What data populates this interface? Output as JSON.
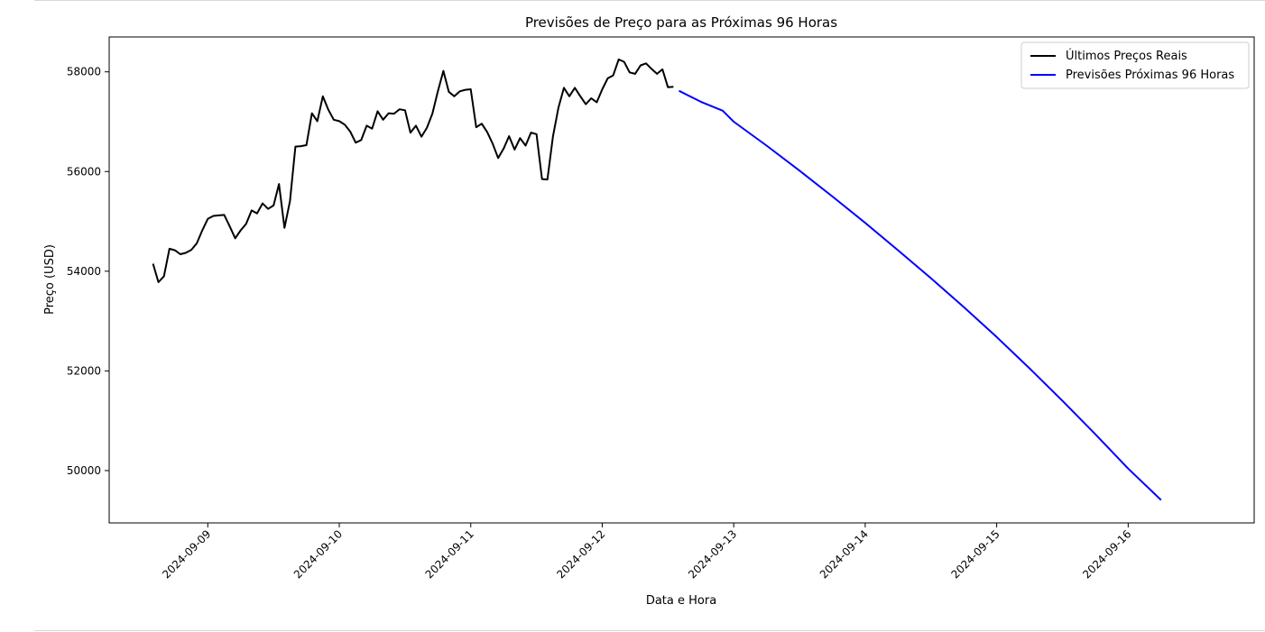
{
  "chart_data": {
    "type": "line",
    "title": "Previsões de Preço para as Próximas 96 Horas",
    "xlabel": "Data e Hora",
    "ylabel": "Preço (USD)",
    "ylim": [
      48950,
      58700
    ],
    "xlim": [
      "2024-09-08 06:00",
      "2024-09-16 23:00"
    ],
    "x_ticks": [
      "2024-09-09",
      "2024-09-10",
      "2024-09-11",
      "2024-09-12",
      "2024-09-13",
      "2024-09-14",
      "2024-09-15",
      "2024-09-16"
    ],
    "y_ticks": [
      50000,
      52000,
      54000,
      56000,
      58000
    ],
    "grid": false,
    "legend_position": "top-right",
    "series": [
      {
        "name": "Últimos Preços Reais",
        "color": "#000000",
        "points": [
          [
            "2024-09-08 14:00",
            54150
          ],
          [
            "2024-09-08 15:00",
            53780
          ],
          [
            "2024-09-08 16:00",
            53900
          ],
          [
            "2024-09-08 17:00",
            54450
          ],
          [
            "2024-09-08 18:00",
            54420
          ],
          [
            "2024-09-08 19:00",
            54340
          ],
          [
            "2024-09-08 20:00",
            54370
          ],
          [
            "2024-09-08 21:00",
            54430
          ],
          [
            "2024-09-08 22:00",
            54560
          ],
          [
            "2024-09-08 23:00",
            54820
          ],
          [
            "2024-09-09 00:00",
            55050
          ],
          [
            "2024-09-09 01:00",
            55110
          ],
          [
            "2024-09-09 02:00",
            55120
          ],
          [
            "2024-09-09 03:00",
            55130
          ],
          [
            "2024-09-09 04:00",
            54900
          ],
          [
            "2024-09-09 05:00",
            54660
          ],
          [
            "2024-09-09 06:00",
            54820
          ],
          [
            "2024-09-09 07:00",
            54950
          ],
          [
            "2024-09-09 08:00",
            55220
          ],
          [
            "2024-09-09 09:00",
            55160
          ],
          [
            "2024-09-09 10:00",
            55360
          ],
          [
            "2024-09-09 11:00",
            55250
          ],
          [
            "2024-09-09 12:00",
            55320
          ],
          [
            "2024-09-09 13:00",
            55750
          ],
          [
            "2024-09-09 14:00",
            54870
          ],
          [
            "2024-09-09 15:00",
            55410
          ],
          [
            "2024-09-09 16:00",
            56500
          ],
          [
            "2024-09-09 17:00",
            56510
          ],
          [
            "2024-09-09 18:00",
            56530
          ],
          [
            "2024-09-09 19:00",
            57170
          ],
          [
            "2024-09-09 20:00",
            57010
          ],
          [
            "2024-09-09 21:00",
            57510
          ],
          [
            "2024-09-09 22:00",
            57240
          ],
          [
            "2024-09-09 23:00",
            57040
          ],
          [
            "2024-09-10 00:00",
            57010
          ],
          [
            "2024-09-10 01:00",
            56940
          ],
          [
            "2024-09-10 02:00",
            56800
          ],
          [
            "2024-09-10 03:00",
            56580
          ],
          [
            "2024-09-10 04:00",
            56630
          ],
          [
            "2024-09-10 05:00",
            56920
          ],
          [
            "2024-09-10 06:00",
            56860
          ],
          [
            "2024-09-10 07:00",
            57210
          ],
          [
            "2024-09-10 08:00",
            57040
          ],
          [
            "2024-09-10 09:00",
            57170
          ],
          [
            "2024-09-10 10:00",
            57160
          ],
          [
            "2024-09-10 11:00",
            57250
          ],
          [
            "2024-09-10 12:00",
            57230
          ],
          [
            "2024-09-10 13:00",
            56780
          ],
          [
            "2024-09-10 14:00",
            56920
          ],
          [
            "2024-09-10 15:00",
            56700
          ],
          [
            "2024-09-10 16:00",
            56880
          ],
          [
            "2024-09-10 17:00",
            57160
          ],
          [
            "2024-09-10 18:00",
            57610
          ],
          [
            "2024-09-10 19:00",
            58020
          ],
          [
            "2024-09-10 20:00",
            57600
          ],
          [
            "2024-09-10 21:00",
            57510
          ],
          [
            "2024-09-10 22:00",
            57610
          ],
          [
            "2024-09-10 23:00",
            57640
          ],
          [
            "2024-09-11 00:00",
            57650
          ],
          [
            "2024-09-11 01:00",
            56890
          ],
          [
            "2024-09-11 02:00",
            56960
          ],
          [
            "2024-09-11 03:00",
            56790
          ],
          [
            "2024-09-11 04:00",
            56560
          ],
          [
            "2024-09-11 05:00",
            56270
          ],
          [
            "2024-09-11 06:00",
            56460
          ],
          [
            "2024-09-11 07:00",
            56710
          ],
          [
            "2024-09-11 08:00",
            56440
          ],
          [
            "2024-09-11 09:00",
            56670
          ],
          [
            "2024-09-11 10:00",
            56520
          ],
          [
            "2024-09-11 11:00",
            56780
          ],
          [
            "2024-09-11 12:00",
            56750
          ],
          [
            "2024-09-11 13:00",
            55850
          ],
          [
            "2024-09-11 14:00",
            55840
          ],
          [
            "2024-09-11 15:00",
            56700
          ],
          [
            "2024-09-11 16:00",
            57280
          ],
          [
            "2024-09-11 17:00",
            57680
          ],
          [
            "2024-09-11 18:00",
            57510
          ],
          [
            "2024-09-11 19:00",
            57680
          ],
          [
            "2024-09-11 20:00",
            57510
          ],
          [
            "2024-09-11 21:00",
            57350
          ],
          [
            "2024-09-11 22:00",
            57470
          ],
          [
            "2024-09-11 23:00",
            57390
          ],
          [
            "2024-09-12 00:00",
            57650
          ],
          [
            "2024-09-12 01:00",
            57870
          ],
          [
            "2024-09-12 02:00",
            57930
          ],
          [
            "2024-09-12 03:00",
            58250
          ],
          [
            "2024-09-12 04:00",
            58200
          ],
          [
            "2024-09-12 05:00",
            57990
          ],
          [
            "2024-09-12 06:00",
            57960
          ],
          [
            "2024-09-12 07:00",
            58130
          ],
          [
            "2024-09-12 08:00",
            58170
          ],
          [
            "2024-09-12 09:00",
            58060
          ],
          [
            "2024-09-12 10:00",
            57960
          ],
          [
            "2024-09-12 11:00",
            58050
          ],
          [
            "2024-09-12 12:00",
            57690
          ],
          [
            "2024-09-12 13:00",
            57700
          ]
        ]
      },
      {
        "name": "Previsões Próximas 96 Horas",
        "color": "#0000ff",
        "points": [
          [
            "2024-09-12 14:00",
            57620
          ],
          [
            "2024-09-12 18:00",
            57400
          ],
          [
            "2024-09-12 22:00",
            57220
          ],
          [
            "2024-09-13 00:00",
            57000
          ],
          [
            "2024-09-13 06:00",
            56520
          ],
          [
            "2024-09-13 12:00",
            56020
          ],
          [
            "2024-09-13 18:00",
            55500
          ],
          [
            "2024-09-14 00:00",
            54970
          ],
          [
            "2024-09-14 06:00",
            54420
          ],
          [
            "2024-09-14 12:00",
            53860
          ],
          [
            "2024-09-14 18:00",
            53280
          ],
          [
            "2024-09-15 00:00",
            52680
          ],
          [
            "2024-09-15 06:00",
            52050
          ],
          [
            "2024-09-15 12:00",
            51400
          ],
          [
            "2024-09-15 18:00",
            50730
          ],
          [
            "2024-09-16 00:00",
            50040
          ],
          [
            "2024-09-16 06:00",
            49410
          ]
        ]
      }
    ]
  }
}
